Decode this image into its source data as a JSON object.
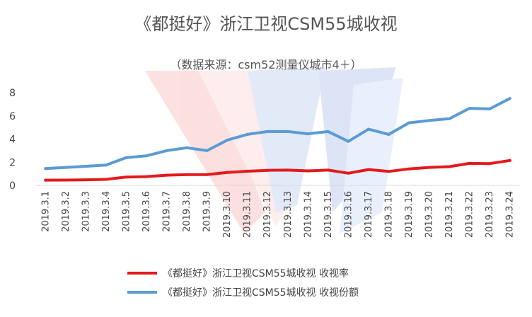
{
  "chart_data": {
    "type": "line",
    "title": "《都挺好》浙江卫视CSM55城收视",
    "subtitle": "（数据来源：csm52测量仪城市4＋）",
    "categories": [
      "2019.3.1",
      "2019.3.2",
      "2019.3.3",
      "2019.3.4",
      "2019.3.5",
      "2019.3.6",
      "2019.3.7",
      "2019.3.8",
      "2019.3.9",
      "2019.3.10",
      "2019.3.11",
      "2019.3.12",
      "2019.3.13",
      "2019.3.14",
      "2019.3.15",
      "2019.3.16",
      "2019.3.17",
      "2019.3.18",
      "2019.3.19",
      "2019.3.20",
      "2019.3.21",
      "2019.3.22",
      "2019.3.23",
      "2019.3.24"
    ],
    "series": [
      {
        "name": "《都挺好》浙江卫视CSM55城收视 收视率",
        "color": "#e31a1c",
        "values": [
          0.45,
          0.46,
          0.48,
          0.52,
          0.72,
          0.76,
          0.88,
          0.93,
          0.93,
          1.12,
          1.22,
          1.3,
          1.32,
          1.25,
          1.32,
          1.05,
          1.37,
          1.2,
          1.42,
          1.55,
          1.62,
          1.9,
          1.88,
          2.15
        ]
      },
      {
        "name": "《都挺好》浙江卫视CSM55城收视 收视份额",
        "color": "#5b9bd5",
        "values": [
          1.45,
          1.55,
          1.65,
          1.75,
          2.4,
          2.55,
          3.0,
          3.25,
          3.0,
          3.9,
          4.4,
          4.65,
          4.65,
          4.45,
          4.65,
          3.8,
          4.85,
          4.4,
          5.4,
          5.6,
          5.75,
          6.65,
          6.6,
          7.5
        ]
      }
    ],
    "yticks": [
      0,
      2,
      4,
      6,
      8
    ],
    "ylim": [
      0,
      8
    ],
    "grid": false,
    "legend_position": "bottom"
  }
}
